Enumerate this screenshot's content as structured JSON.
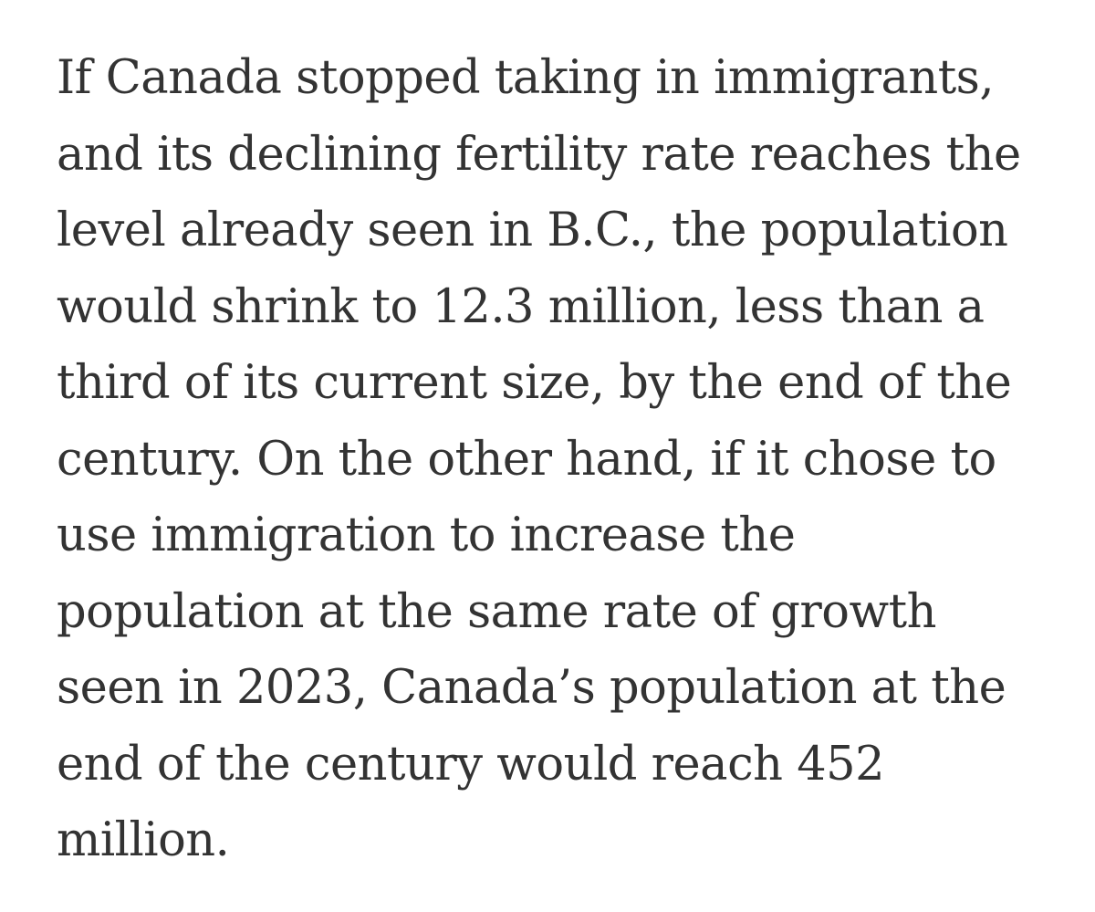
{
  "article": {
    "lines": [
      "If Canada stopped taking in immigrants,",
      "and its declining fertility rate reaches the",
      "level already seen in B.C., the population",
      "would shrink to 12.3 million, less than a",
      "third of its current size, by the end of the",
      "century. On the other hand, if it chose to",
      "use immigration to increase the",
      "population at the same rate of growth",
      "seen in 2023, Canada’s population at the",
      "end of the century would reach 452",
      "million."
    ]
  }
}
